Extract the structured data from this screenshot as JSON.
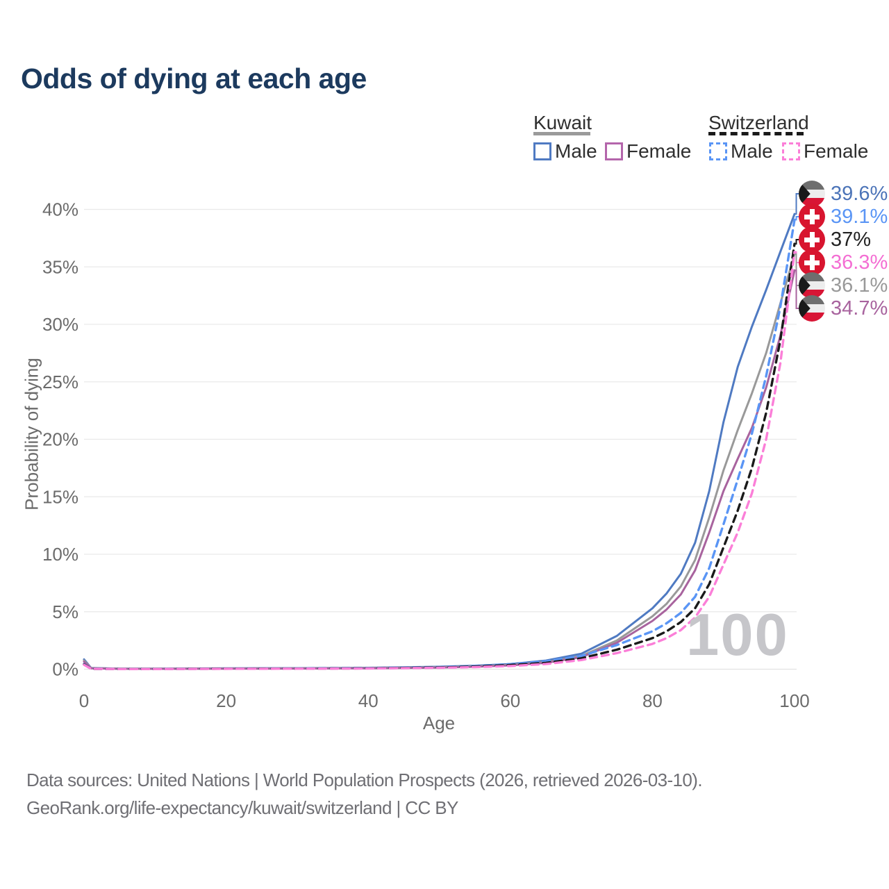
{
  "title": "Odds of dying at each age",
  "legend": {
    "groups": [
      {
        "country": "Kuwait",
        "style": "solid",
        "underline_color": "#9a9a9a",
        "items": [
          {
            "label": "Male",
            "color": "#4f7ac2"
          },
          {
            "label": "Female",
            "color": "#b465ab"
          }
        ]
      },
      {
        "country": "Switzerland",
        "style": "dashed",
        "underline_color": "#1a1a1a",
        "items": [
          {
            "label": "Male",
            "color": "#5a95f5"
          },
          {
            "label": "Female",
            "color": "#fb7fd8"
          }
        ]
      }
    ]
  },
  "chart_data": {
    "type": "line",
    "title": "Odds of dying at each age",
    "xlabel": "Age",
    "ylabel": "Probability of dying",
    "xlim": [
      0,
      100
    ],
    "ylim": [
      0,
      41.5
    ],
    "grid": "horizontal",
    "x_ticks": [
      {
        "value": 0,
        "label": "0"
      },
      {
        "value": 20,
        "label": "20"
      },
      {
        "value": 40,
        "label": "40"
      },
      {
        "value": 60,
        "label": "60"
      },
      {
        "value": 80,
        "label": "80"
      },
      {
        "value": 100,
        "label": "100"
      }
    ],
    "y_ticks": [
      {
        "value": 0,
        "label": "0%"
      },
      {
        "value": 5,
        "label": "5%"
      },
      {
        "value": 10,
        "label": "10%"
      },
      {
        "value": 15,
        "label": "15%"
      },
      {
        "value": 20,
        "label": "20%"
      },
      {
        "value": 25,
        "label": "25%"
      },
      {
        "value": 30,
        "label": "30%"
      },
      {
        "value": 35,
        "label": "35%"
      },
      {
        "value": 40,
        "label": "40%"
      }
    ],
    "ages": [
      0,
      1,
      5,
      10,
      20,
      30,
      40,
      50,
      55,
      60,
      65,
      70,
      75,
      80,
      82,
      84,
      86,
      88,
      90,
      92,
      94,
      96,
      98,
      100
    ],
    "series": [
      {
        "name": "Kuwait Male",
        "country": "Kuwait",
        "sex": "Male",
        "color": "#4f7ac2",
        "dash": false,
        "values": [
          0.85,
          0.1,
          0.04,
          0.04,
          0.07,
          0.09,
          0.12,
          0.21,
          0.3,
          0.45,
          0.75,
          1.35,
          2.9,
          5.3,
          6.6,
          8.3,
          11.0,
          15.5,
          21.5,
          26.3,
          29.8,
          33.0,
          36.3,
          39.6
        ]
      },
      {
        "name": "Kuwait Both sexes",
        "country": "Kuwait",
        "sex": "Both",
        "color": "#999999",
        "dash": false,
        "values": [
          0.75,
          0.09,
          0.035,
          0.035,
          0.055,
          0.07,
          0.095,
          0.17,
          0.25,
          0.37,
          0.62,
          1.15,
          2.5,
          4.6,
          5.7,
          7.2,
          9.5,
          13.2,
          17.3,
          20.8,
          24.0,
          27.5,
          31.8,
          36.1
        ]
      },
      {
        "name": "Kuwait Female",
        "country": "Kuwait",
        "sex": "Female",
        "color": "#a8639e",
        "dash": false,
        "values": [
          0.65,
          0.08,
          0.03,
          0.03,
          0.045,
          0.055,
          0.08,
          0.14,
          0.21,
          0.33,
          0.55,
          1.05,
          2.3,
          4.2,
          5.2,
          6.5,
          8.6,
          11.9,
          15.5,
          18.3,
          21.0,
          24.5,
          29.0,
          34.7
        ]
      },
      {
        "name": "Switzerland Male",
        "country": "Switzerland",
        "sex": "Male",
        "color": "#5a95f5",
        "dash": true,
        "values": [
          0.45,
          0.035,
          0.02,
          0.02,
          0.05,
          0.06,
          0.09,
          0.18,
          0.28,
          0.44,
          0.68,
          1.15,
          2.1,
          3.3,
          4.0,
          4.9,
          6.3,
          8.8,
          12.6,
          16.5,
          20.5,
          25.5,
          31.5,
          39.1
        ]
      },
      {
        "name": "Switzerland Both sexes",
        "country": "Switzerland",
        "sex": "Both",
        "color": "#1a1a1a",
        "dash": true,
        "values": [
          0.42,
          0.03,
          0.018,
          0.018,
          0.04,
          0.05,
          0.075,
          0.15,
          0.23,
          0.36,
          0.55,
          0.95,
          1.7,
          2.7,
          3.3,
          4.1,
          5.3,
          7.4,
          10.6,
          13.8,
          17.5,
          22.3,
          28.6,
          37.0
        ]
      },
      {
        "name": "Switzerland Female",
        "country": "Switzerland",
        "sex": "Female",
        "color": "#fb7fd8",
        "dash": true,
        "values": [
          0.38,
          0.028,
          0.015,
          0.015,
          0.03,
          0.04,
          0.06,
          0.12,
          0.18,
          0.28,
          0.45,
          0.8,
          1.4,
          2.2,
          2.7,
          3.4,
          4.5,
          6.3,
          9.1,
          11.9,
          15.3,
          20.0,
          26.6,
          36.3
        ]
      }
    ],
    "end_labels": [
      {
        "text": "39.6%",
        "value": 39.6,
        "color": "#4c74b8",
        "flag": "kuwait",
        "series": 0
      },
      {
        "text": "39.1%",
        "value": 39.1,
        "color": "#5a95f5",
        "flag": "switzerland",
        "series": 3
      },
      {
        "text": "37%",
        "value": 37.0,
        "color": "#222222",
        "flag": "switzerland",
        "series": 4
      },
      {
        "text": "36.3%",
        "value": 36.3,
        "color": "#f46ed3",
        "flag": "switzerland",
        "series": 5
      },
      {
        "text": "36.1%",
        "value": 36.1,
        "color": "#999999",
        "flag": "kuwait",
        "series": 1
      },
      {
        "text": "34.7%",
        "value": 34.7,
        "color": "#a8639e",
        "flag": "kuwait",
        "series": 2
      }
    ],
    "colors": {
      "grid": "#e9e9e9",
      "axis_text": "#6b6b6b",
      "title": "#1c3a5e",
      "watermark": "#c6c6ca"
    }
  },
  "watermark": "100",
  "footer": {
    "line1": "Data sources: United Nations | World Population Prospects (2026, retrieved 2026-03-10).",
    "line2": "GeoRank.org/life-expectancy/kuwait/switzerland | CC BY"
  }
}
